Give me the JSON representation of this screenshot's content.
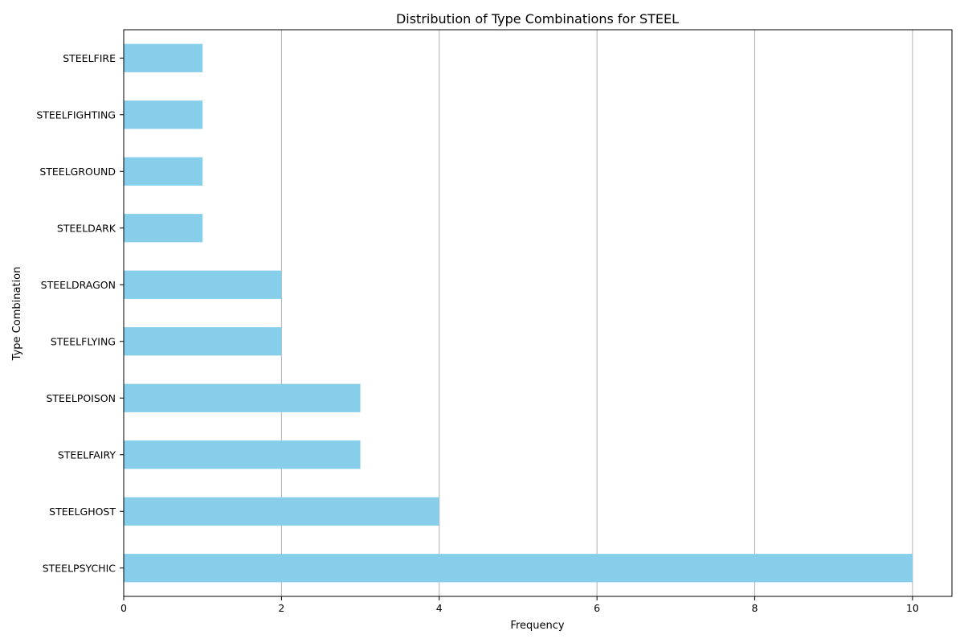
{
  "chart_data": {
    "type": "bar",
    "orientation": "horizontal",
    "title": "Distribution of Type Combinations for STEEL",
    "xlabel": "Frequency",
    "ylabel": "Type Combination",
    "categories": [
      "STEELPSYCHIC",
      "STEELGHOST",
      "STEELFAIRY",
      "STEELPOISON",
      "STEELFLYING",
      "STEELDRAGON",
      "STEELDARK",
      "STEELGROUND",
      "STEELFIGHTING",
      "STEELFIRE"
    ],
    "values": [
      10,
      4,
      3,
      3,
      2,
      2,
      1,
      1,
      1,
      1
    ],
    "xlim": [
      0,
      10.5
    ],
    "xticks": [
      0,
      2,
      4,
      6,
      8,
      10
    ],
    "grid": "x",
    "legend": "none",
    "bar_color": "#87ceeb"
  }
}
